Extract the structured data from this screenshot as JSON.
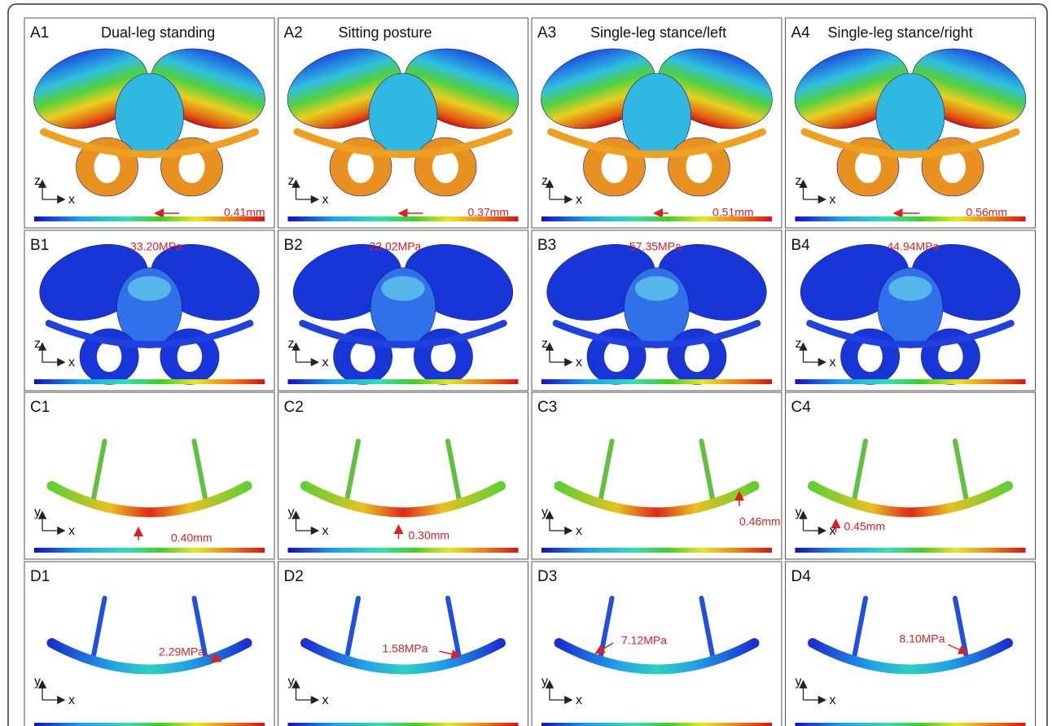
{
  "rows": [
    {
      "panels": [
        {
          "label": "A1",
          "title": "Dual-leg standing",
          "annotation": "0.41mm",
          "axis_vertical": "z",
          "axis_horizontal": "x"
        },
        {
          "label": "A2",
          "title": "Sitting posture",
          "annotation": "0.37mm",
          "axis_vertical": "z",
          "axis_horizontal": "x"
        },
        {
          "label": "A3",
          "title": "Single-leg stance/left",
          "annotation": "0.51mm",
          "axis_vertical": "z",
          "axis_horizontal": "x"
        },
        {
          "label": "A4",
          "title": "Single-leg stance/right",
          "annotation": "0.56mm",
          "axis_vertical": "z",
          "axis_horizontal": "x"
        }
      ]
    },
    {
      "panels": [
        {
          "label": "B1",
          "annotation": "33.20MPa",
          "axis_vertical": "z",
          "axis_horizontal": "x"
        },
        {
          "label": "B2",
          "annotation": "23.02MPa",
          "axis_vertical": "z",
          "axis_horizontal": "x"
        },
        {
          "label": "B3",
          "annotation": "57.35MPa",
          "axis_vertical": "z",
          "axis_horizontal": "x"
        },
        {
          "label": "B4",
          "annotation": "44.94MPa",
          "axis_vertical": "z",
          "axis_horizontal": "x"
        }
      ]
    },
    {
      "panels": [
        {
          "label": "C1",
          "annotation": "0.40mm",
          "axis_vertical": "y",
          "axis_horizontal": "x"
        },
        {
          "label": "C2",
          "annotation": "0.30mm",
          "axis_vertical": "y",
          "axis_horizontal": "x"
        },
        {
          "label": "C3",
          "annotation": "0.46mm",
          "axis_vertical": "y",
          "axis_horizontal": "x"
        },
        {
          "label": "C4",
          "annotation": "0.45mm",
          "axis_vertical": "y",
          "axis_horizontal": "x"
        }
      ]
    },
    {
      "panels": [
        {
          "label": "D1",
          "annotation": "2.29MPa",
          "axis_vertical": "y",
          "axis_horizontal": "x"
        },
        {
          "label": "D2",
          "annotation": "1.58MPa",
          "axis_vertical": "y",
          "axis_horizontal": "x"
        },
        {
          "label": "D3",
          "annotation": "7.12MPa",
          "axis_vertical": "y",
          "axis_horizontal": "x"
        },
        {
          "label": "D4",
          "annotation": "8.10MPa",
          "axis_vertical": "y",
          "axis_horizontal": "x"
        }
      ]
    }
  ]
}
